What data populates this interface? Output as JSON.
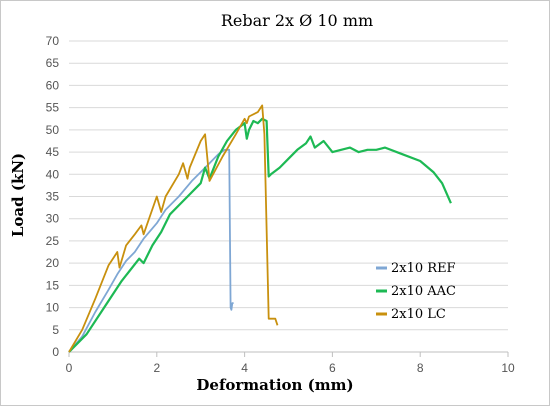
{
  "chart_data": {
    "type": "line",
    "title": "Rebar 2x Ø 10 mm",
    "xlabel": "Deformation (mm)",
    "ylabel": "Load (kN)",
    "xlim": [
      0,
      10
    ],
    "ylim": [
      0,
      70
    ],
    "xticks": [
      "0",
      "2",
      "4",
      "6",
      "8",
      "10"
    ],
    "yticks": [
      "0",
      "5",
      "10",
      "15",
      "20",
      "25",
      "30",
      "35",
      "40",
      "45",
      "50",
      "55",
      "60",
      "65",
      "70"
    ],
    "grid": "horizontal",
    "legend": "right",
    "series": [
      {
        "name": "2x10 REF",
        "color": "#7fa7d4",
        "x": [
          0,
          0.3,
          0.6,
          0.9,
          1.1,
          1.3,
          1.5,
          1.7,
          2.0,
          2.2,
          2.5,
          2.8,
          3.0,
          3.2,
          3.4,
          3.55,
          3.65,
          3.68,
          3.7,
          3.72,
          3.75
        ],
        "y": [
          0,
          3.5,
          9,
          14,
          17.5,
          20.5,
          22.5,
          25.5,
          29,
          32,
          35,
          38.5,
          40.5,
          42.5,
          44.5,
          45.5,
          45.5,
          10,
          9.5,
          11,
          11
        ]
      },
      {
        "name": "2x10 AAC",
        "color": "#1db954",
        "x": [
          0,
          0.4,
          0.8,
          1.2,
          1.6,
          1.7,
          1.9,
          2.1,
          2.3,
          2.5,
          2.8,
          3.0,
          3.1,
          3.2,
          3.4,
          3.6,
          3.8,
          4.0,
          4.05,
          4.1,
          4.2,
          4.3,
          4.4,
          4.5,
          4.55,
          4.6,
          4.8,
          5.0,
          5.2,
          5.4,
          5.5,
          5.6,
          5.8,
          6.0,
          6.2,
          6.4,
          6.6,
          6.8,
          7.0,
          7.2,
          7.6,
          8.0,
          8.3,
          8.5,
          8.7
        ],
        "y": [
          0,
          4,
          10,
          16,
          21,
          20,
          24,
          27,
          31,
          33,
          36,
          38,
          41.5,
          39,
          44,
          47.5,
          50,
          51.5,
          48,
          50,
          52,
          51.5,
          52.5,
          52,
          39.5,
          40,
          41.5,
          43.5,
          45.5,
          47,
          48.5,
          46,
          47.5,
          45,
          45.5,
          46,
          45,
          45.5,
          45.5,
          46,
          44.5,
          43,
          40.5,
          38,
          33.5
        ]
      },
      {
        "name": "2x10 LC",
        "color": "#c8900e",
        "x": [
          0,
          0.3,
          0.6,
          0.9,
          1.0,
          1.1,
          1.15,
          1.3,
          1.5,
          1.65,
          1.7,
          2.0,
          2.1,
          2.2,
          2.5,
          2.6,
          2.7,
          2.75,
          3.0,
          3.1,
          3.2,
          3.5,
          3.8,
          4.0,
          4.05,
          4.1,
          4.3,
          4.4,
          4.45,
          4.55,
          4.6,
          4.7,
          4.75
        ],
        "y": [
          0,
          5,
          12,
          19.5,
          21,
          22.5,
          19,
          24,
          26.5,
          28.5,
          26.5,
          35,
          31.5,
          35,
          40,
          42.5,
          39,
          41.5,
          47.5,
          49,
          38.5,
          44,
          49,
          52.5,
          51.5,
          53,
          54,
          55.5,
          49,
          7.5,
          7.5,
          7.5,
          6
        ]
      }
    ]
  }
}
